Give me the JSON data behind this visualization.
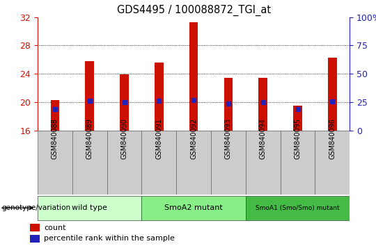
{
  "title": "GDS4495 / 100088872_TGI_at",
  "samples": [
    "GSM840088",
    "GSM840089",
    "GSM840090",
    "GSM840091",
    "GSM840092",
    "GSM840093",
    "GSM840094",
    "GSM840095",
    "GSM840096"
  ],
  "counts": [
    20.3,
    25.8,
    23.9,
    25.6,
    31.3,
    23.4,
    23.4,
    19.5,
    26.3
  ],
  "percentile_pct": [
    19.0,
    26.0,
    25.0,
    26.0,
    27.0,
    24.0,
    25.0,
    18.5,
    25.5
  ],
  "ylim_left": [
    16,
    32
  ],
  "ylim_right": [
    0,
    100
  ],
  "yticks_left": [
    16,
    20,
    24,
    28,
    32
  ],
  "yticks_right": [
    0,
    25,
    50,
    75,
    100
  ],
  "bar_color": "#cc1100",
  "dot_color": "#2222bb",
  "bar_width": 0.25,
  "groups": [
    {
      "label": "wild type",
      "start": 0,
      "end": 2,
      "color": "#ccffcc"
    },
    {
      "label": "SmoA2 mutant",
      "start": 3,
      "end": 5,
      "color": "#88ee88"
    },
    {
      "label": "SmoA1 (Smo/Smo) mutant",
      "start": 6,
      "end": 8,
      "color": "#44bb44"
    }
  ],
  "group_label": "genotype/variation",
  "legend_count": "count",
  "legend_percentile": "percentile rank within the sample",
  "plot_bg": "#ffffff",
  "tick_box_bg": "#cccccc",
  "grid_color": "#000000",
  "tick_label_color_left": "#cc1100",
  "tick_label_color_right": "#2222bb",
  "grid_yticks": [
    20,
    24,
    28
  ]
}
